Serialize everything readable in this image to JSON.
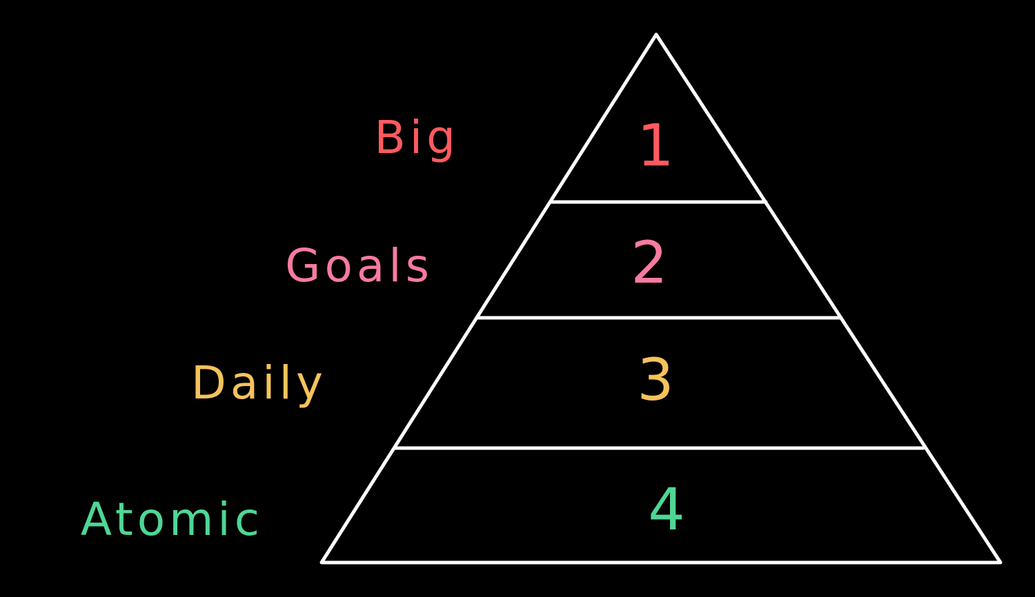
{
  "diagram": {
    "type": "pyramid",
    "levels": [
      {
        "number": "1",
        "label": "Big",
        "color": "#ff5a5f"
      },
      {
        "number": "2",
        "label": "Goals",
        "color": "#f77ba0"
      },
      {
        "number": "3",
        "label": "Daily",
        "color": "#f5c35c"
      },
      {
        "number": "4",
        "label": "Atomic",
        "color": "#4fd694"
      }
    ],
    "outline_color": "#ffffff",
    "background_color": "#000000"
  }
}
